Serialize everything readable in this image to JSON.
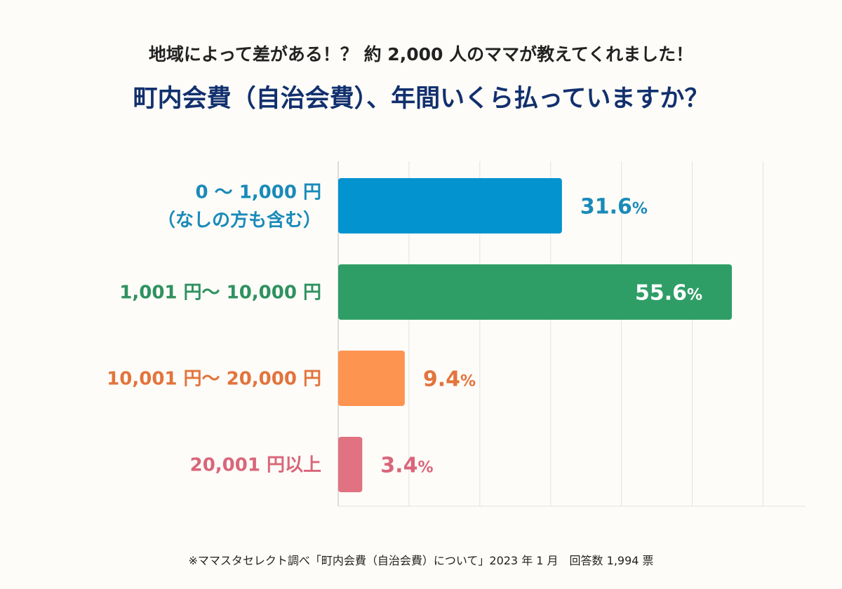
{
  "subtitle": "地域によって差がある！？ 約 2,000 人のママが教えてくれました！",
  "chart_data": {
    "type": "bar",
    "orientation": "horizontal",
    "title": "町内会費（自治会費）、年間いくら払っていますか？",
    "categories": [
      [
        "0 〜 1,000 円",
        "（なしの方も含む）"
      ],
      [
        "1,001 円〜 10,000 円"
      ],
      [
        "10,001 円〜 20,000 円"
      ],
      [
        "20,001 円以上"
      ]
    ],
    "values": [
      31.6,
      55.6,
      9.4,
      3.4
    ],
    "value_labels": [
      "31.6%",
      "55.6%",
      "9.4%",
      "3.4%"
    ],
    "unit": "%",
    "xlim": [
      0,
      66
    ],
    "grid": true,
    "grid_step": 10,
    "bar_colors": [
      "#0393cf",
      "#2f9e66",
      "#fd9450",
      "#e07282"
    ],
    "label_colors": [
      "#1a8ab9",
      "#2e9160",
      "#e2743c",
      "#d9667a"
    ]
  },
  "footnote": "※ママスタセレクト調べ「町内会費（自治会費）について」2023 年 1 月　回答数 1,994 票"
}
